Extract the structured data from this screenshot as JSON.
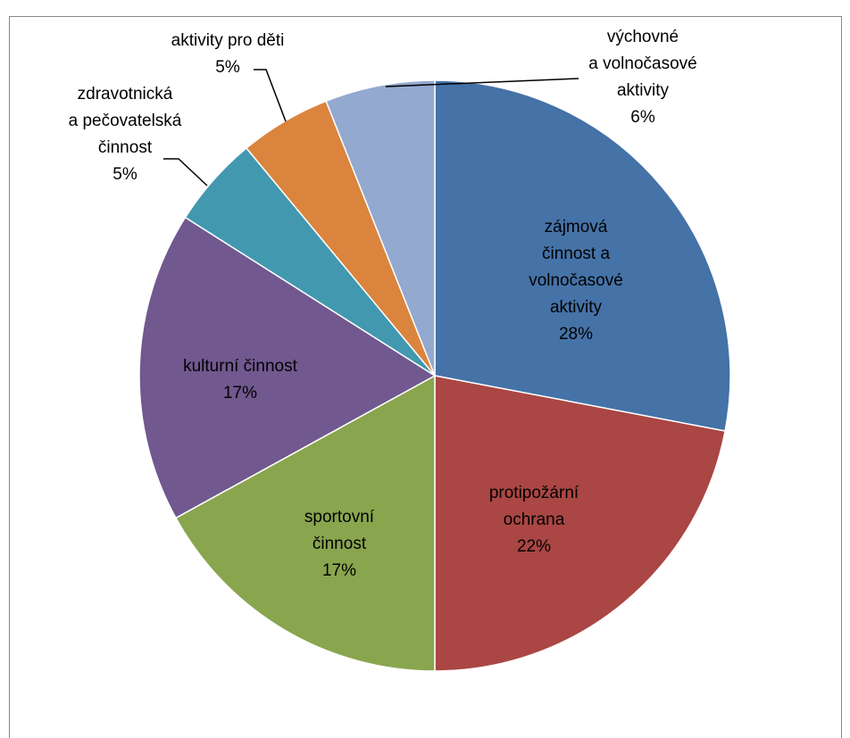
{
  "chart_data": {
    "type": "pie",
    "categories": [
      "zájmová\nčinnost a\nvolnočasové\naktivity",
      "protipožární\nochrana",
      "sportovní\nčinnost",
      "kulturní činnost",
      "zdravotnická\na pečovatelská\nčinnost",
      "aktivity pro děti",
      "výchovné\na volnočasové\naktivity"
    ],
    "values": [
      28,
      22,
      17,
      17,
      5,
      5,
      6
    ],
    "value_labels": [
      "28%",
      "22%",
      "17%",
      "17%",
      "5%",
      "5%",
      "6%"
    ],
    "colors": [
      "#4572a7",
      "#aa4643",
      "#89a54e",
      "#71588f",
      "#4198af",
      "#db843d",
      "#93a9cf"
    ]
  }
}
